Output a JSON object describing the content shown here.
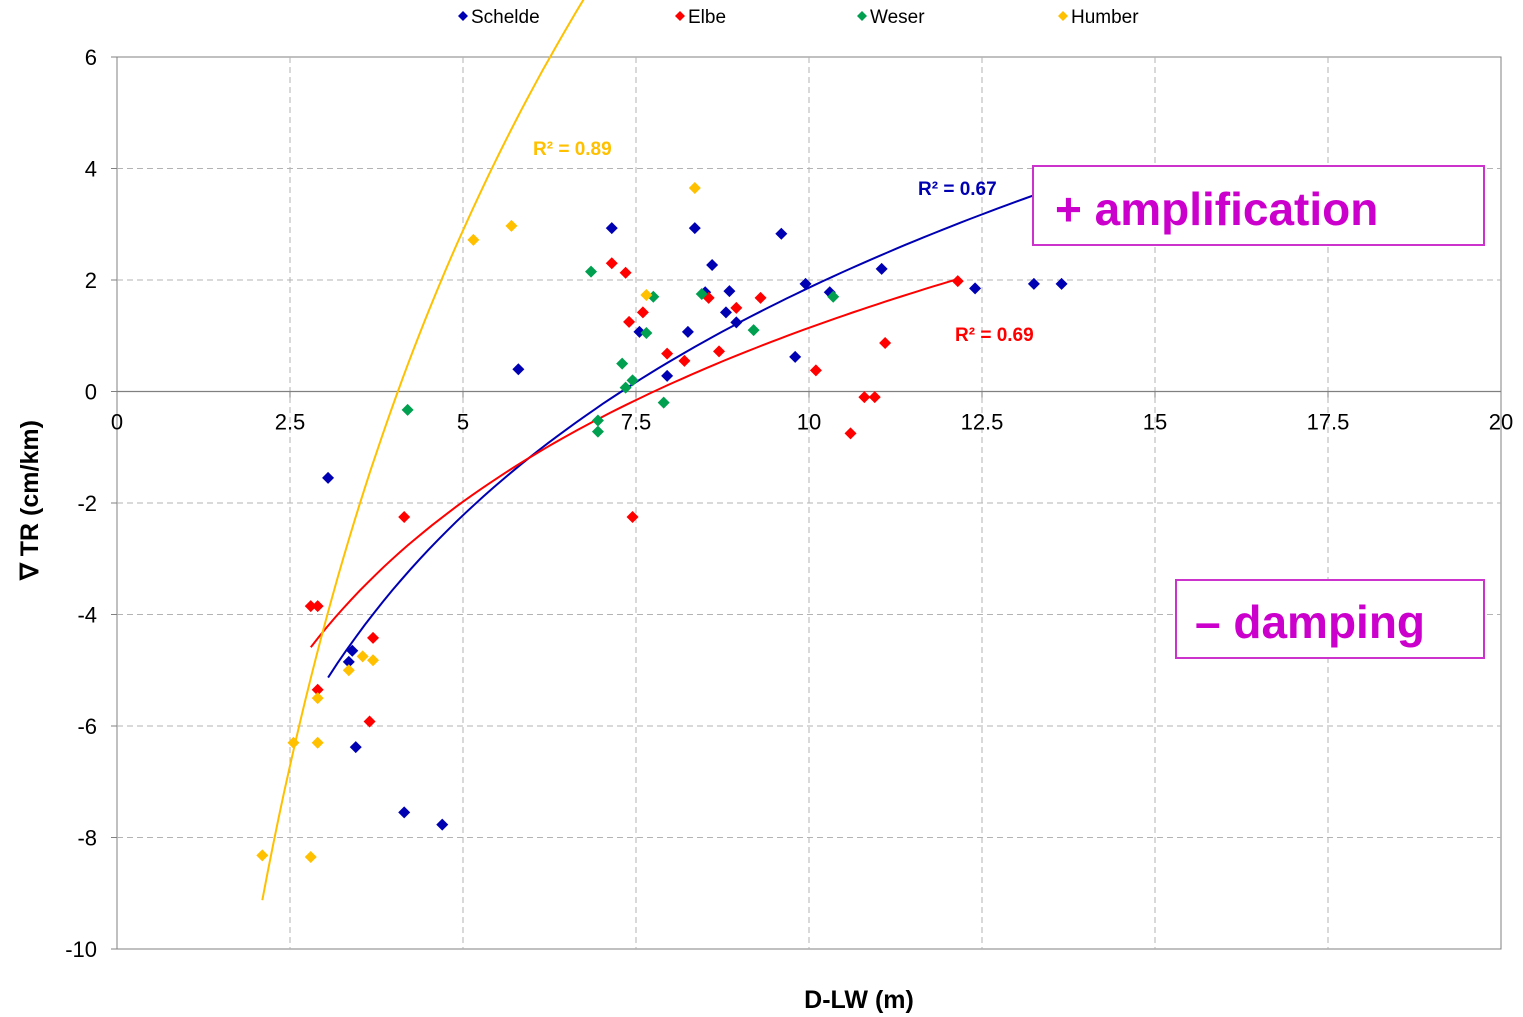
{
  "chart_data": {
    "type": "scatter",
    "xlabel": "D-LW (m)",
    "ylabel": "∇ TR (cm/km)",
    "xlim": [
      0,
      20
    ],
    "ylim": [
      -10,
      6
    ],
    "xticks": [
      0,
      2.5,
      5,
      7.5,
      10,
      12.5,
      15,
      17.5,
      20
    ],
    "xtick_labels": [
      "0",
      "2.5",
      "5",
      "7.5",
      "10",
      "12.5",
      "15",
      "17.5",
      "20"
    ],
    "yticks": [
      -10,
      -8,
      -6,
      -4,
      -2,
      0,
      2,
      4,
      6
    ],
    "ytick_labels": [
      "-10",
      "-8",
      "-6",
      "-4",
      "-2",
      "0",
      "2",
      "4",
      "6"
    ],
    "grid": true,
    "legend_position": "top",
    "series": [
      {
        "name": "Schelde",
        "color": "#0000b3",
        "marker": "diamond",
        "points": [
          [
            3.05,
            -1.55
          ],
          [
            3.4,
            -4.65
          ],
          [
            3.35,
            -4.85
          ],
          [
            3.45,
            -6.38
          ],
          [
            4.15,
            -7.55
          ],
          [
            4.7,
            -7.77
          ],
          [
            5.8,
            0.4
          ],
          [
            7.15,
            2.93
          ],
          [
            7.55,
            1.07
          ],
          [
            7.95,
            0.28
          ],
          [
            8.25,
            1.07
          ],
          [
            8.35,
            2.93
          ],
          [
            8.5,
            1.78
          ],
          [
            8.6,
            2.27
          ],
          [
            8.8,
            1.42
          ],
          [
            8.85,
            1.8
          ],
          [
            8.95,
            1.24
          ],
          [
            9.6,
            2.83
          ],
          [
            9.8,
            0.62
          ],
          [
            9.95,
            1.93
          ],
          [
            10.3,
            1.78
          ],
          [
            11.05,
            2.2
          ],
          [
            12.4,
            1.85
          ],
          [
            13.25,
            1.93
          ],
          [
            13.65,
            1.93
          ]
        ],
        "trend": {
          "type": "log",
          "a": 5.89,
          "b": -11.7,
          "x_range": [
            3.05,
            13.65
          ]
        },
        "r2_label": "R² = 0.67"
      },
      {
        "name": "Elbe",
        "color": "#ff0000",
        "marker": "diamond",
        "points": [
          [
            2.8,
            -3.85
          ],
          [
            2.9,
            -3.85
          ],
          [
            2.9,
            -5.35
          ],
          [
            3.65,
            -5.92
          ],
          [
            3.7,
            -4.42
          ],
          [
            4.15,
            -2.25
          ],
          [
            7.15,
            2.3
          ],
          [
            7.35,
            2.13
          ],
          [
            7.4,
            1.25
          ],
          [
            7.45,
            -2.25
          ],
          [
            7.6,
            1.42
          ],
          [
            7.95,
            0.68
          ],
          [
            8.2,
            0.55
          ],
          [
            8.55,
            1.68
          ],
          [
            8.7,
            0.72
          ],
          [
            8.95,
            1.5
          ],
          [
            9.3,
            1.68
          ],
          [
            10.1,
            0.38
          ],
          [
            10.6,
            -0.75
          ],
          [
            10.8,
            -0.1
          ],
          [
            10.95,
            -0.1
          ],
          [
            11.1,
            0.87
          ],
          [
            12.15,
            1.98
          ]
        ],
        "trend": {
          "type": "log",
          "a": 4.5,
          "b": -9.22,
          "x_range": [
            2.8,
            12.15
          ]
        },
        "r2_label": "R² = 0.69"
      },
      {
        "name": "Weser",
        "color": "#00a050",
        "marker": "diamond",
        "points": [
          [
            4.2,
            -0.33
          ],
          [
            6.85,
            2.15
          ],
          [
            6.95,
            -0.52
          ],
          [
            6.95,
            -0.72
          ],
          [
            7.3,
            0.5
          ],
          [
            7.35,
            0.07
          ],
          [
            7.45,
            0.2
          ],
          [
            7.65,
            1.05
          ],
          [
            7.75,
            1.7
          ],
          [
            7.9,
            -0.2
          ],
          [
            8.45,
            1.75
          ],
          [
            9.2,
            1.1
          ],
          [
            10.35,
            1.7
          ]
        ],
        "trend": null,
        "r2_label": ""
      },
      {
        "name": "Humber",
        "color": "#ffc000",
        "marker": "diamond",
        "points": [
          [
            2.1,
            -8.32
          ],
          [
            2.55,
            -6.3
          ],
          [
            2.8,
            -8.35
          ],
          [
            2.9,
            -6.3
          ],
          [
            2.9,
            -5.5
          ],
          [
            3.35,
            -5.0
          ],
          [
            3.55,
            -4.75
          ],
          [
            3.7,
            -4.82
          ],
          [
            5.15,
            2.72
          ],
          [
            5.7,
            2.97
          ],
          [
            7.65,
            1.73
          ],
          [
            8.35,
            3.65
          ]
        ],
        "trend": {
          "type": "log",
          "a": 13.85,
          "b": -19.4,
          "x_range": [
            2.1,
            8.35
          ]
        },
        "r2_label": "R² = 0.89"
      }
    ],
    "annotations": [
      {
        "id": "amplification",
        "text": "+ amplification"
      },
      {
        "id": "damping",
        "text": "– damping"
      }
    ]
  }
}
